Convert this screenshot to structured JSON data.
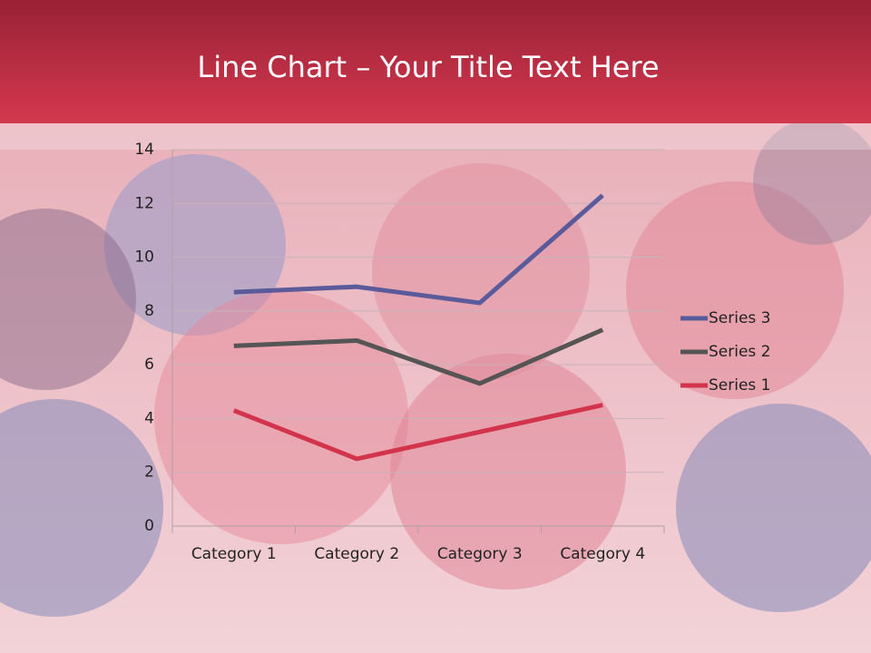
{
  "chart_data": {
    "type": "line",
    "stacked": true,
    "title": "Line Chart – Your Title Text Here",
    "categories": [
      "Category 1",
      "Category 2",
      "Category 3",
      "Category 4"
    ],
    "series": [
      {
        "name": "Series 1",
        "color": "#d2344c",
        "values": [
          4.3,
          2.5,
          3.5,
          4.5
        ]
      },
      {
        "name": "Series 2",
        "color": "#555555",
        "values": [
          2.4,
          4.4,
          1.8,
          2.8
        ]
      },
      {
        "name": "Series 3",
        "color": "#5b5b9c",
        "values": [
          2,
          2,
          3,
          5
        ]
      }
    ],
    "ylim": [
      0,
      14
    ],
    "yticks": [
      0,
      2,
      4,
      6,
      8,
      10,
      12,
      14
    ],
    "grid": true,
    "legend": "right"
  }
}
